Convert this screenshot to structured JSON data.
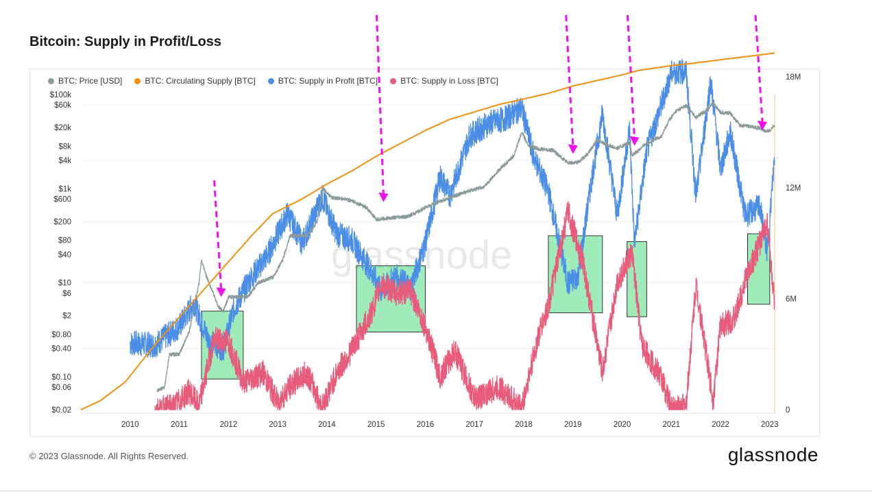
{
  "header": {
    "title": "Bitcoin: Supply in Profit/Loss"
  },
  "footer": {
    "copyright": "© 2023 Glassnode. All Rights Reserved.",
    "brand": "glassnode"
  },
  "colors": {
    "price": "#8c9a9b",
    "supply": "#f2900f",
    "profit": "#4b8ee8",
    "loss": "#e85b7a",
    "highlight": "#5fe08c",
    "arrow": "#ee10ee"
  },
  "chart_data": {
    "type": "line",
    "title": "Bitcoin: Supply in Profit/Loss",
    "watermark": "glassnode",
    "legend_position": "top-left",
    "x": {
      "ticks": [
        "2010",
        "2011",
        "2012",
        "2013",
        "2014",
        "2015",
        "2016",
        "2017",
        "2018",
        "2019",
        "2020",
        "2021",
        "2022",
        "2023"
      ],
      "range": [
        2009.0,
        2023.1
      ]
    },
    "y_left": {
      "scale": "log",
      "ticks": [
        "$100k",
        "$60k",
        "$20k",
        "$8k",
        "$4k",
        "$1k",
        "$600",
        "$200",
        "$80",
        "$40",
        "$10",
        "$6",
        "$2",
        "$0.80",
        "$0.40",
        "$0.10",
        "$0.06",
        "$0.02"
      ],
      "range": [
        0.02,
        100000
      ]
    },
    "y_right": {
      "ticks": [
        "18M",
        "12M",
        "6M",
        "0"
      ],
      "range": [
        0,
        20000000
      ]
    },
    "series": [
      {
        "name": "BTC: Price [USD]",
        "axis": "left",
        "color": "#8c9a9b",
        "points": [
          [
            2010.55,
            0.05
          ],
          [
            2010.7,
            0.06
          ],
          [
            2010.8,
            0.3
          ],
          [
            2011.0,
            0.3
          ],
          [
            2011.2,
            0.9
          ],
          [
            2011.4,
            10
          ],
          [
            2011.45,
            30
          ],
          [
            2011.55,
            14
          ],
          [
            2011.8,
            3
          ],
          [
            2011.9,
            2.5
          ],
          [
            2012.0,
            5
          ],
          [
            2012.4,
            5
          ],
          [
            2012.6,
            10
          ],
          [
            2012.9,
            13
          ],
          [
            2013.1,
            30
          ],
          [
            2013.25,
            100
          ],
          [
            2013.4,
            100
          ],
          [
            2013.6,
            100
          ],
          [
            2013.8,
            200
          ],
          [
            2013.92,
            1000
          ],
          [
            2014.1,
            650
          ],
          [
            2014.4,
            600
          ],
          [
            2014.6,
            500
          ],
          [
            2014.8,
            400
          ],
          [
            2015.0,
            220
          ],
          [
            2015.3,
            240
          ],
          [
            2015.6,
            250
          ],
          [
            2015.8,
            300
          ],
          [
            2016.0,
            400
          ],
          [
            2016.5,
            650
          ],
          [
            2016.9,
            900
          ],
          [
            2017.2,
            1100
          ],
          [
            2017.5,
            2500
          ],
          [
            2017.8,
            5000
          ],
          [
            2017.96,
            16000
          ],
          [
            2018.1,
            8000
          ],
          [
            2018.3,
            7000
          ],
          [
            2018.6,
            6500
          ],
          [
            2018.9,
            3500
          ],
          [
            2019.1,
            3600
          ],
          [
            2019.3,
            5500
          ],
          [
            2019.5,
            11000
          ],
          [
            2019.7,
            8500
          ],
          [
            2019.9,
            7200
          ],
          [
            2020.15,
            9500
          ],
          [
            2020.2,
            5000
          ],
          [
            2020.5,
            9300
          ],
          [
            2020.8,
            13000
          ],
          [
            2020.95,
            28000
          ],
          [
            2021.1,
            45000
          ],
          [
            2021.3,
            58000
          ],
          [
            2021.5,
            33000
          ],
          [
            2021.7,
            45000
          ],
          [
            2021.85,
            66000
          ],
          [
            2022.0,
            42000
          ],
          [
            2022.2,
            40000
          ],
          [
            2022.4,
            22000
          ],
          [
            2022.6,
            21000
          ],
          [
            2022.8,
            19500
          ],
          [
            2022.9,
            16500
          ],
          [
            2023.0,
            17000
          ],
          [
            2023.1,
            23000
          ]
        ]
      },
      {
        "name": "BTC: Circulating Supply [BTC]",
        "axis": "right",
        "color": "#f2900f",
        "points": [
          [
            2009.0,
            0
          ],
          [
            2009.4,
            500000
          ],
          [
            2009.9,
            1500000
          ],
          [
            2010.5,
            3500000
          ],
          [
            2011.0,
            5000000
          ],
          [
            2011.5,
            6500000
          ],
          [
            2012.0,
            8000000
          ],
          [
            2012.5,
            9500000
          ],
          [
            2012.9,
            10600000
          ],
          [
            2013.5,
            11400000
          ],
          [
            2014.0,
            12200000
          ],
          [
            2014.5,
            12900000
          ],
          [
            2015.0,
            13700000
          ],
          [
            2015.5,
            14400000
          ],
          [
            2016.0,
            15100000
          ],
          [
            2016.5,
            15700000
          ],
          [
            2017.0,
            16100000
          ],
          [
            2017.5,
            16500000
          ],
          [
            2018.0,
            16800000
          ],
          [
            2018.5,
            17100000
          ],
          [
            2019.0,
            17500000
          ],
          [
            2019.5,
            17800000
          ],
          [
            2020.0,
            18100000
          ],
          [
            2020.35,
            18350000
          ],
          [
            2021.0,
            18600000
          ],
          [
            2021.5,
            18750000
          ],
          [
            2022.0,
            18920000
          ],
          [
            2022.5,
            19080000
          ],
          [
            2023.0,
            19250000
          ],
          [
            2023.1,
            19280000
          ]
        ]
      },
      {
        "name": "BTC: Supply in Profit [BTC]",
        "axis": "right",
        "color": "#4b8ee8",
        "points": [
          [
            2010.0,
            3600000
          ],
          [
            2010.5,
            3500000
          ],
          [
            2011.0,
            4500000
          ],
          [
            2011.3,
            5800000
          ],
          [
            2011.6,
            3700000
          ],
          [
            2011.9,
            3300000
          ],
          [
            2012.1,
            5400000
          ],
          [
            2012.4,
            6900000
          ],
          [
            2012.8,
            8400000
          ],
          [
            2013.2,
            10600000
          ],
          [
            2013.5,
            9000000
          ],
          [
            2013.9,
            11500000
          ],
          [
            2014.2,
            9500000
          ],
          [
            2014.5,
            9200000
          ],
          [
            2014.9,
            7500000
          ],
          [
            2015.1,
            6400000
          ],
          [
            2015.4,
            7200000
          ],
          [
            2015.7,
            6600000
          ],
          [
            2016.0,
            9000000
          ],
          [
            2016.3,
            12600000
          ],
          [
            2016.5,
            11600000
          ],
          [
            2016.9,
            14800000
          ],
          [
            2017.3,
            15500000
          ],
          [
            2017.6,
            15700000
          ],
          [
            2017.96,
            16300000
          ],
          [
            2018.2,
            13700000
          ],
          [
            2018.5,
            11800000
          ],
          [
            2018.9,
            6800000
          ],
          [
            2019.1,
            7200000
          ],
          [
            2019.4,
            12800000
          ],
          [
            2019.6,
            16000000
          ],
          [
            2019.9,
            10500000
          ],
          [
            2020.15,
            15200000
          ],
          [
            2020.25,
            9000000
          ],
          [
            2020.5,
            14000000
          ],
          [
            2020.8,
            16500000
          ],
          [
            2021.0,
            18200000
          ],
          [
            2021.3,
            18300000
          ],
          [
            2021.5,
            11500000
          ],
          [
            2021.8,
            17800000
          ],
          [
            2022.0,
            13000000
          ],
          [
            2022.2,
            15000000
          ],
          [
            2022.5,
            10500000
          ],
          [
            2022.8,
            11000000
          ],
          [
            2022.95,
            8500000
          ],
          [
            2023.1,
            13800000
          ]
        ]
      },
      {
        "name": "BTC: Supply in Loss [BTC]",
        "axis": "right",
        "color": "#e85b7a",
        "points": [
          [
            2010.5,
            0
          ],
          [
            2010.9,
            200000
          ],
          [
            2011.2,
            1000000
          ],
          [
            2011.4,
            200000
          ],
          [
            2011.7,
            3800000
          ],
          [
            2012.0,
            3700000
          ],
          [
            2012.3,
            1500000
          ],
          [
            2012.7,
            2000000
          ],
          [
            2013.0,
            400000
          ],
          [
            2013.3,
            1400000
          ],
          [
            2013.6,
            2000000
          ],
          [
            2013.9,
            100000
          ],
          [
            2014.2,
            2000000
          ],
          [
            2014.5,
            3200000
          ],
          [
            2014.9,
            5200000
          ],
          [
            2015.1,
            6800000
          ],
          [
            2015.4,
            6300000
          ],
          [
            2015.7,
            6400000
          ],
          [
            2016.0,
            4500000
          ],
          [
            2016.3,
            1800000
          ],
          [
            2016.6,
            3200000
          ],
          [
            2017.0,
            600000
          ],
          [
            2017.5,
            1200000
          ],
          [
            2017.96,
            100000
          ],
          [
            2018.3,
            4000000
          ],
          [
            2018.5,
            5600000
          ],
          [
            2018.9,
            10700000
          ],
          [
            2019.2,
            8000000
          ],
          [
            2019.6,
            2000000
          ],
          [
            2019.9,
            6900000
          ],
          [
            2020.2,
            8500000
          ],
          [
            2020.4,
            3500000
          ],
          [
            2020.8,
            1700000
          ],
          [
            2021.0,
            100000
          ],
          [
            2021.3,
            200000
          ],
          [
            2021.5,
            6800000
          ],
          [
            2021.85,
            500000
          ],
          [
            2022.0,
            4500000
          ],
          [
            2022.3,
            5000000
          ],
          [
            2022.5,
            7000000
          ],
          [
            2022.8,
            9000000
          ],
          [
            2022.95,
            10200000
          ],
          [
            2023.1,
            5500000
          ]
        ]
      }
    ],
    "highlights": [
      {
        "x0": 2011.45,
        "x1": 2012.3,
        "y0": 2.5,
        "y1": 0.09
      },
      {
        "x0": 2014.6,
        "x1": 2016.0,
        "y0": 23,
        "y1": 0.9
      },
      {
        "x0": 2018.5,
        "x1": 2019.6,
        "y0": 100,
        "y1": 2.3
      },
      {
        "x0": 2020.1,
        "x1": 2020.5,
        "y0": 75,
        "y1": 1.9
      },
      {
        "x0": 2022.55,
        "x1": 2023.0,
        "y0": 110,
        "y1": 3.5
      }
    ],
    "arrows": [
      {
        "x": 2011.85,
        "y": 5,
        "from_y": 1500
      },
      {
        "x": 2015.15,
        "y": 520,
        "from_y": 8000000
      },
      {
        "x": 2019.0,
        "y": 5500,
        "from_y": 300000000
      },
      {
        "x": 2020.25,
        "y": 8200,
        "from_y": 3000000000
      },
      {
        "x": 2022.85,
        "y": 17500,
        "from_y": 300000000000
      }
    ]
  }
}
